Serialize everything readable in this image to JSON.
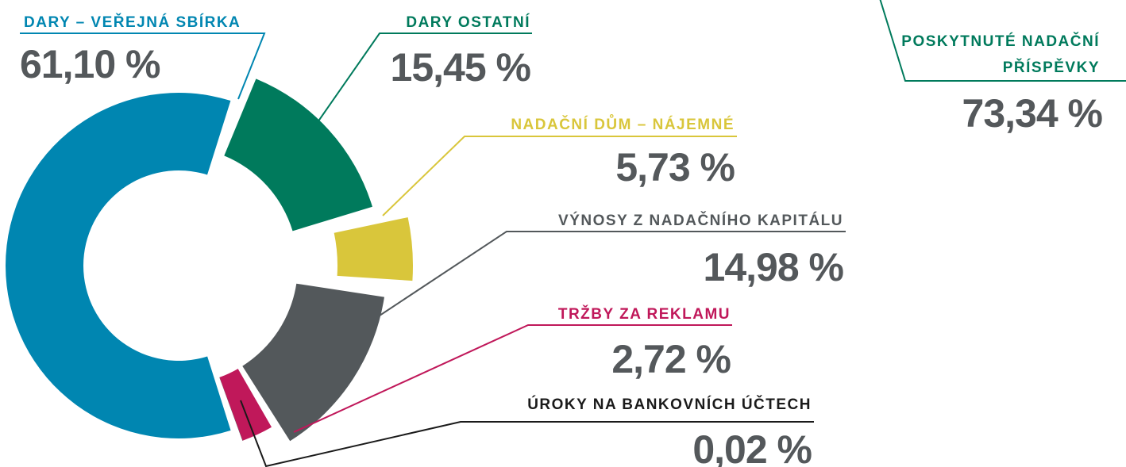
{
  "chart_data": [
    {
      "type": "donut",
      "categories": [
        "DARY – VEŘEJNÁ SBÍRKA",
        "DARY OSTATNÍ",
        "NADAČNÍ DŮM – NÁJEMNÉ",
        "VÝNOSY Z NADAČNÍHO KAPITÁLU",
        "TRŽBY ZA REKLAMU",
        "ÚROKY NA BANKOVNÍCH ÚČTECH"
      ],
      "values": [
        61.1,
        15.45,
        5.73,
        14.98,
        2.72,
        0.02
      ],
      "value_labels": [
        "61,10 %",
        "15,45 %",
        "5,73 %",
        "14,98 %",
        "2,72 %",
        "0,02 %"
      ],
      "colors": [
        "#0086b1",
        "#007a5c",
        "#d9c63b",
        "#53585b",
        "#c0185a",
        "#1a1a1a"
      ]
    },
    {
      "type": "donut",
      "categories": [
        "POSKYTNUTÉ NADAČNÍ PŘÍSPĚVKY"
      ],
      "values": [
        73.34
      ],
      "value_labels": [
        "73,34 %"
      ],
      "colors": [
        "#007a5c"
      ]
    }
  ]
}
